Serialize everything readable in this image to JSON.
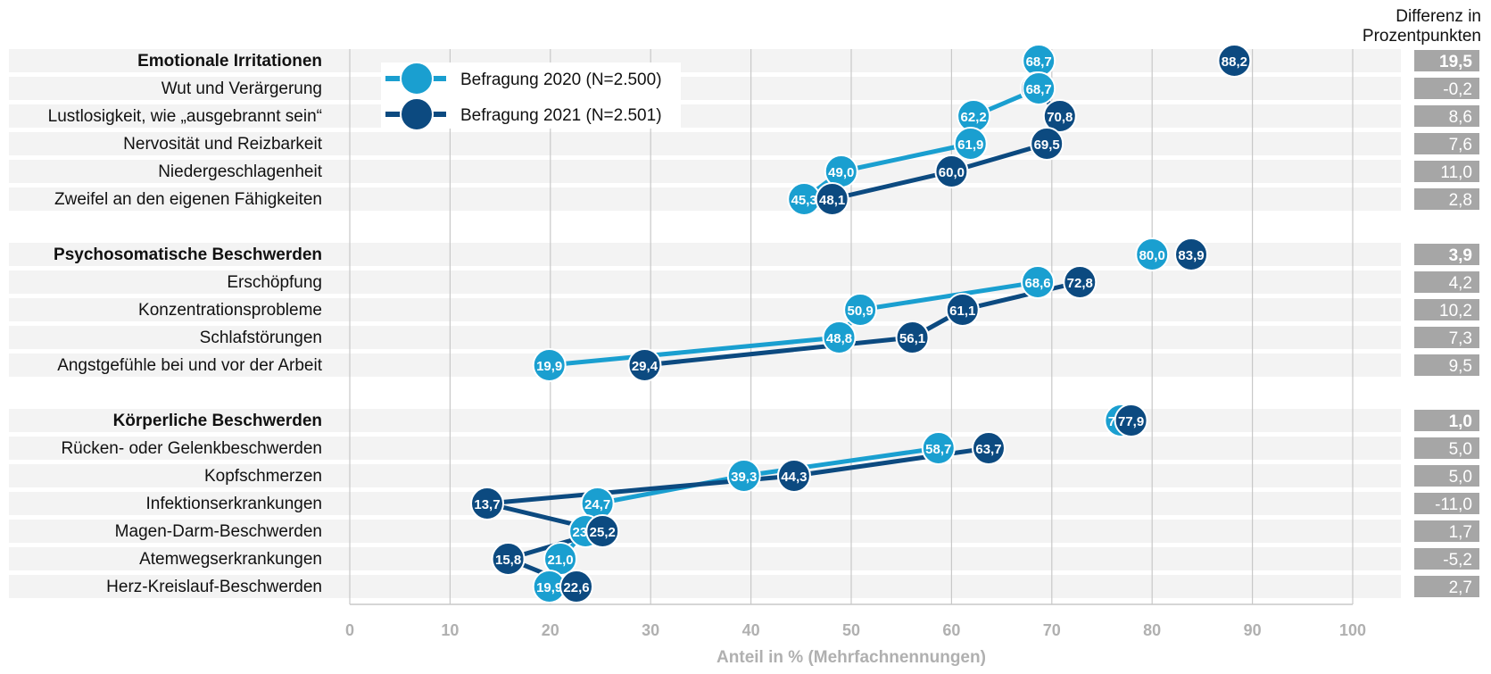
{
  "chart_data": {
    "type": "scatter",
    "subtype": "dot-plot-connected",
    "xlabel": "Anteil in % (Mehrfachnennungen)",
    "xlim": [
      0,
      100
    ],
    "xticks": [
      0,
      10,
      20,
      30,
      40,
      50,
      60,
      70,
      80,
      90,
      100
    ],
    "grid": true,
    "diff_header": "Differenz in\nProzentpunkten",
    "legend": {
      "placement": "top-left",
      "entries": [
        {
          "label": "Befragung 2020 (N=2.500)",
          "series": "2020"
        },
        {
          "label": "Befragung 2021 (N=2.501)",
          "series": "2021"
        }
      ]
    },
    "colors": {
      "2020": "#1a9fd0",
      "2021": "#0c4a80",
      "diff_box": "#a6a6a6",
      "row_band": "#f3f3f3",
      "grid": "#c8c8c8",
      "axis_text": "#b0b0b0"
    },
    "groups": [
      {
        "name": "Emotionale Irritationen",
        "summary": {
          "v2020": 68.7,
          "v2021": 88.2,
          "diff": "19,5"
        },
        "items": [
          {
            "label": "Wut und Verärgerung",
            "v2020": 68.7,
            "v2021": 68.5,
            "diff": "-0,2"
          },
          {
            "label": "Lustlosigkeit, wie „ausgebrannt sein“",
            "v2020": 62.2,
            "v2021": 70.8,
            "diff": "8,6"
          },
          {
            "label": "Nervosität und Reizbarkeit",
            "v2020": 61.9,
            "v2021": 69.5,
            "diff": "7,6"
          },
          {
            "label": "Niedergeschlagenheit",
            "v2020": 49.0,
            "v2021": 60.0,
            "diff": "11,0"
          },
          {
            "label": "Zweifel an den eigenen Fähigkeiten",
            "v2020": 45.3,
            "v2021": 48.1,
            "diff": "2,8"
          }
        ]
      },
      {
        "name": "Psychosomatische Beschwerden",
        "summary": {
          "v2020": 80.0,
          "v2021": 83.9,
          "diff": "3,9"
        },
        "items": [
          {
            "label": "Erschöpfung",
            "v2020": 68.6,
            "v2021": 72.8,
            "diff": "4,2"
          },
          {
            "label": "Konzentrationsprobleme",
            "v2020": 50.9,
            "v2021": 61.1,
            "diff": "10,2"
          },
          {
            "label": "Schlafstörungen",
            "v2020": 48.8,
            "v2021": 56.1,
            "diff": "7,3"
          },
          {
            "label": "Angstgefühle bei und vor der Arbeit",
            "v2020": 19.9,
            "v2021": 29.4,
            "diff": "9,5"
          }
        ]
      },
      {
        "name": "Körperliche Beschwerden",
        "summary": {
          "v2020": 76.9,
          "v2021": 77.9,
          "diff": "1,0"
        },
        "items": [
          {
            "label": "Rücken- oder Gelenkbeschwerden",
            "v2020": 58.7,
            "v2021": 63.7,
            "diff": "5,0"
          },
          {
            "label": "Kopfschmerzen",
            "v2020": 39.3,
            "v2021": 44.3,
            "diff": "5,0"
          },
          {
            "label": "Infektionserkrankungen",
            "v2020": 24.7,
            "v2021": 13.7,
            "diff": "-11,0"
          },
          {
            "label": "Magen-Darm-Beschwerden",
            "v2020": 23.5,
            "v2021": 25.2,
            "diff": "1,7"
          },
          {
            "label": "Atemwegserkrankungen",
            "v2020": 21.0,
            "v2021": 15.8,
            "diff": "-5,2"
          },
          {
            "label": "Herz-Kreislauf-Beschwerden",
            "v2020": 19.9,
            "v2021": 22.6,
            "diff": "2,7"
          }
        ]
      }
    ]
  }
}
